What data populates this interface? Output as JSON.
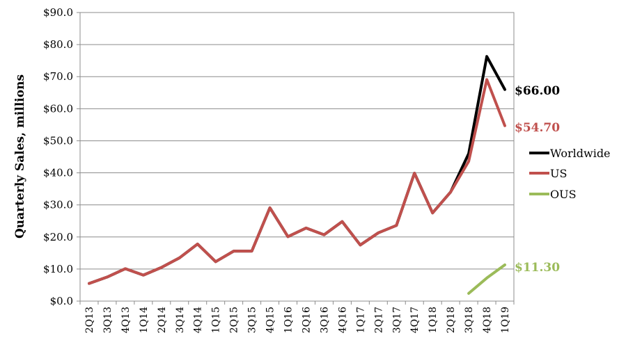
{
  "chart_data": {
    "type": "line",
    "title": "",
    "xlabel": "",
    "ylabel": "Quarterly Sales, millions",
    "ylim": [
      0,
      90
    ],
    "yticks": [
      "$0.0",
      "$10.0",
      "$20.0",
      "$30.0",
      "$40.0",
      "$50.0",
      "$60.0",
      "$70.0",
      "$80.0",
      "$90.0"
    ],
    "grid": true,
    "legend": "right",
    "categories": [
      "2Q13",
      "3Q13",
      "4Q13",
      "1Q14",
      "2Q14",
      "3Q14",
      "4Q14",
      "1Q15",
      "2Q15",
      "3Q15",
      "4Q15",
      "1Q16",
      "2Q16",
      "3Q16",
      "4Q16",
      "1Q17",
      "2Q17",
      "3Q17",
      "4Q17",
      "1Q18",
      "2Q18",
      "3Q18",
      "4Q18",
      "1Q19"
    ],
    "series": [
      {
        "name": "Worldwide",
        "color": "#000000",
        "values": [
          5.5,
          7.5,
          10.1,
          8.1,
          10.5,
          13.5,
          17.8,
          12.3,
          15.6,
          15.6,
          29.1,
          20.1,
          22.8,
          20.7,
          24.8,
          17.5,
          21.3,
          23.6,
          39.9,
          27.5,
          34.0,
          46.0,
          76.3,
          66.0
        ],
        "end_label": "$66.00"
      },
      {
        "name": "US",
        "color": "#c0504d",
        "values": [
          5.5,
          7.5,
          10.1,
          8.1,
          10.5,
          13.5,
          17.8,
          12.3,
          15.6,
          15.6,
          29.1,
          20.1,
          22.8,
          20.7,
          24.8,
          17.5,
          21.3,
          23.6,
          39.9,
          27.5,
          34.0,
          43.6,
          69.1,
          54.7
        ],
        "end_label": "$54.70"
      },
      {
        "name": "OUS",
        "color": "#9bbb59",
        "values": [
          null,
          null,
          null,
          null,
          null,
          null,
          null,
          null,
          null,
          null,
          null,
          null,
          null,
          null,
          null,
          null,
          null,
          null,
          null,
          null,
          null,
          2.4,
          7.2,
          11.3
        ],
        "end_label": "$11.30"
      }
    ]
  }
}
